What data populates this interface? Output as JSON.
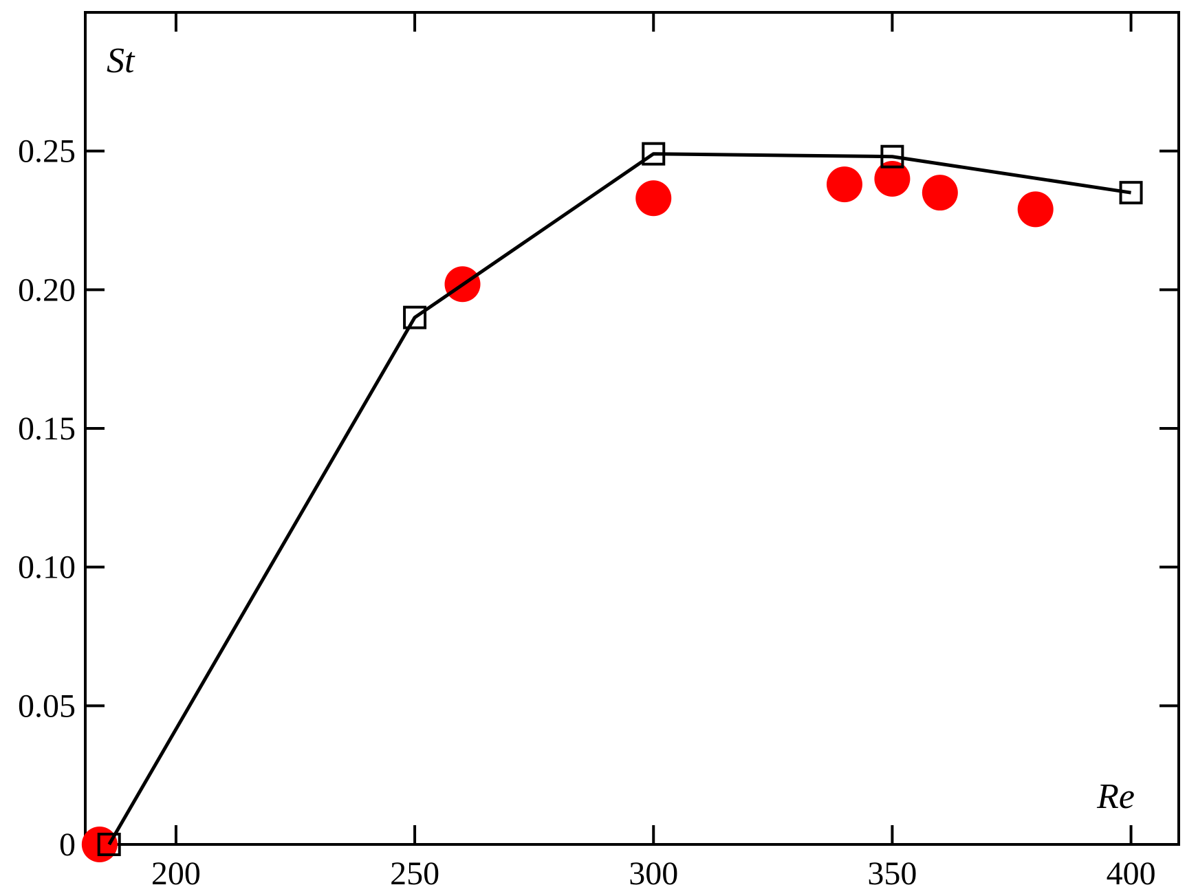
{
  "chart_data": {
    "type": "line",
    "title": "",
    "xlabel": "Re",
    "ylabel": "St",
    "xlim": [
      181,
      410
    ],
    "ylim": [
      0,
      0.3
    ],
    "x_ticks": [
      200,
      250,
      300,
      350,
      400
    ],
    "x_tick_labels": [
      "200",
      "250",
      "300",
      "350",
      "400"
    ],
    "y_ticks": [
      0,
      0.05,
      0.1,
      0.15,
      0.2,
      0.25
    ],
    "y_tick_labels": [
      "0",
      "0.05",
      "0.10",
      "0.15",
      "0.20",
      "0.25"
    ],
    "grid": false,
    "series": [
      {
        "marker": "open-square",
        "style": "line",
        "color": "#000000",
        "x": [
          186,
          250,
          300,
          350,
          400
        ],
        "y": [
          0.0,
          0.19,
          0.249,
          0.248,
          0.235
        ]
      },
      {
        "marker": "filled-circle",
        "style": "scatter",
        "color": "#ff0000",
        "x": [
          184,
          260,
          300,
          340,
          350,
          360,
          380
        ],
        "y": [
          0.0,
          0.202,
          0.233,
          0.238,
          0.24,
          0.235,
          0.229
        ]
      }
    ]
  }
}
